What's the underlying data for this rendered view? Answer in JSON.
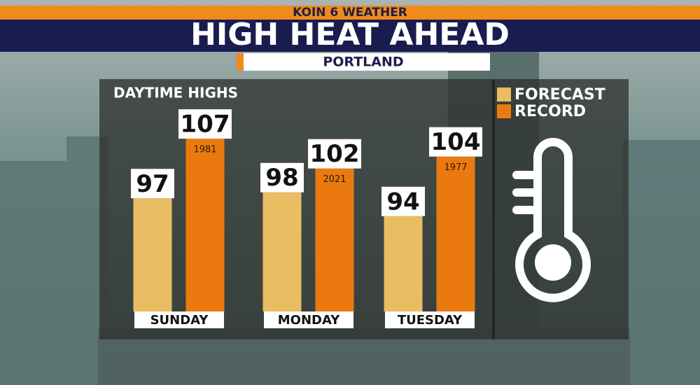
{
  "brand": "KOIN 6 WEATHER",
  "title": "HIGH HEAT AHEAD",
  "subtitle": "PORTLAND",
  "chart_data": {
    "type": "bar",
    "title": "DAYTIME HIGHS",
    "categories": [
      "SUNDAY",
      "MONDAY",
      "TUESDAY"
    ],
    "series": [
      {
        "name": "FORECAST",
        "color": "#e9bd62",
        "values": [
          97,
          98,
          94
        ]
      },
      {
        "name": "RECORD",
        "color": "#ea7a10",
        "values": [
          107,
          102,
          104
        ],
        "years": [
          "1981",
          "2021",
          "1977"
        ]
      }
    ],
    "ylim": [
      78,
      117
    ]
  }
}
